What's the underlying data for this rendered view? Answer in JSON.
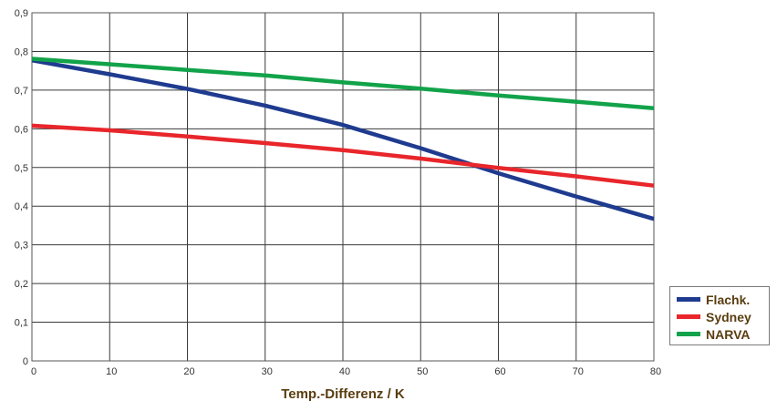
{
  "chart_data": {
    "type": "line",
    "xlabel": "Temp.-Differenz / K",
    "ylabel": "",
    "xlim": [
      0,
      80
    ],
    "ylim": [
      0,
      0.9
    ],
    "x_ticks": [
      "0",
      "10",
      "20",
      "30",
      "40",
      "50",
      "60",
      "70",
      "80"
    ],
    "y_ticks": [
      "0",
      "0,1",
      "0,2",
      "0,3",
      "0,4",
      "0,5",
      "0,6",
      "0,7",
      "0,8",
      "0,9"
    ],
    "grid": true,
    "legend_position": "bottom-right",
    "series": [
      {
        "name": "Flachk.",
        "color": "#1f3b8f",
        "x": [
          0,
          10,
          20,
          30,
          40,
          50,
          60,
          70,
          80
        ],
        "y": [
          0.777,
          0.741,
          0.703,
          0.66,
          0.61,
          0.55,
          0.485,
          0.425,
          0.367
        ]
      },
      {
        "name": "Sydney",
        "color": "#e8262b",
        "x": [
          0,
          10,
          20,
          30,
          40,
          50,
          60,
          70,
          80
        ],
        "y": [
          0.608,
          0.596,
          0.58,
          0.563,
          0.545,
          0.523,
          0.499,
          0.477,
          0.453
        ]
      },
      {
        "name": "NARVA",
        "color": "#12a34a",
        "x": [
          0,
          10,
          20,
          30,
          40,
          50,
          60,
          70,
          80
        ],
        "y": [
          0.781,
          0.767,
          0.752,
          0.738,
          0.72,
          0.704,
          0.686,
          0.67,
          0.653
        ]
      }
    ]
  }
}
